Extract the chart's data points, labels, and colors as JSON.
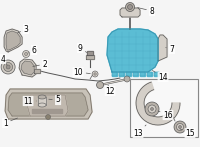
{
  "bg_color": "#f5f5f5",
  "highlight_color": "#5bbdd4",
  "highlight_edge": "#3a9ab5",
  "part_color_light": "#d4cfc8",
  "part_color_med": "#b8b2aa",
  "part_color_dark": "#9a9490",
  "line_color": "#555555",
  "label_color": "#000000",
  "label_fs": 5.5,
  "inset_bg": "#f8f8f8",
  "inset_edge": "#888888",
  "console_face": "#c8c2b8",
  "console_edge": "#7a7268",
  "console_inner": "#b0aa9e"
}
